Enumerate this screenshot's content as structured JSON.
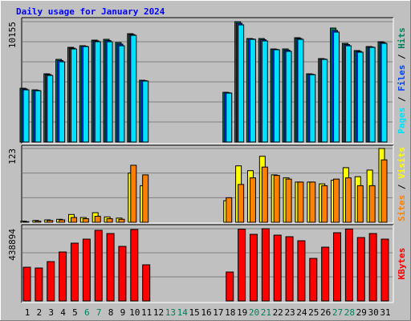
{
  "chart_data": [
    {
      "type": "bar",
      "title": "Daily usage for January 2024",
      "legend_separator": " / ",
      "ylim": [
        0,
        10155
      ],
      "yticks": [
        10155
      ],
      "grid": true,
      "series": [
        {
          "name": "Hits",
          "color": "#00805c",
          "values": [
            4536,
            4400,
            5755,
            6973,
            7989,
            8124,
            8598,
            8666,
            8395,
            9140,
            5213,
            0,
            0,
            0,
            0,
            0,
            0,
            4197,
            10155,
            8733,
            8733,
            7853,
            7853,
            8801,
            5755,
            7041,
            9614,
            8327,
            7718,
            8056,
            8463
          ]
        },
        {
          "name": "Files",
          "color": "#0040ff",
          "values": [
            4480,
            4370,
            5690,
            6870,
            7920,
            8090,
            8530,
            8560,
            8260,
            9070,
            5180,
            0,
            0,
            0,
            0,
            0,
            0,
            4160,
            10020,
            8700,
            8630,
            7820,
            7750,
            8730,
            5720,
            7010,
            9410,
            8220,
            7650,
            8020,
            8390
          ]
        },
        {
          "name": "Pages",
          "color": "#00e0ff",
          "values": [
            4400,
            4333,
            5619,
            6770,
            7853,
            8056,
            8463,
            8463,
            8124,
            9004,
            5145,
            0,
            0,
            0,
            0,
            0,
            0,
            4130,
            9885,
            8666,
            8530,
            7786,
            7650,
            8666,
            5687,
            6973,
            9275,
            8124,
            7582,
            7989,
            8327
          ]
        }
      ]
    },
    {
      "type": "bar",
      "ylim": [
        0,
        123
      ],
      "yticks": [
        123
      ],
      "grid": true,
      "series": [
        {
          "name": "Visits",
          "color": "#ffff00",
          "values": [
            2,
            3,
            4,
            5,
            13,
            8,
            16,
            9,
            7,
            82,
            61,
            0,
            0,
            0,
            0,
            0,
            0,
            36,
            94,
            86,
            110,
            79,
            74,
            67,
            67,
            64,
            70,
            91,
            76,
            87,
            123
          ]
        },
        {
          "name": "Sites",
          "color": "#ff8000",
          "values": [
            1,
            2,
            3,
            4,
            8,
            6,
            10,
            6,
            5,
            95,
            79,
            0,
            0,
            0,
            0,
            0,
            0,
            41,
            63,
            74,
            92,
            78,
            72,
            67,
            67,
            61,
            72,
            74,
            61,
            61,
            104
          ]
        }
      ]
    },
    {
      "type": "bar",
      "ylim": [
        0,
        438894
      ],
      "yticks": [
        438894
      ],
      "grid": true,
      "categories": [
        "1",
        "2",
        "3",
        "4",
        "5",
        "6",
        "7",
        "8",
        "9",
        "10",
        "11",
        "12",
        "13",
        "14",
        "15",
        "16",
        "17",
        "18",
        "19",
        "20",
        "21",
        "22",
        "23",
        "24",
        "25",
        "26",
        "27",
        "28",
        "29",
        "30",
        "31"
      ],
      "category_colors": [
        "#000000",
        "#000000",
        "#000000",
        "#000000",
        "#000000",
        "#00805c",
        "#00805c",
        "#000000",
        "#000000",
        "#000000",
        "#000000",
        "#000000",
        "#00805c",
        "#00805c",
        "#000000",
        "#000000",
        "#000000",
        "#000000",
        "#000000",
        "#00805c",
        "#00805c",
        "#000000",
        "#000000",
        "#000000",
        "#000000",
        "#000000",
        "#00805c",
        "#00805c",
        "#000000",
        "#000000",
        "#000000"
      ],
      "series": [
        {
          "name": "KBytes",
          "color": "#ff0000",
          "values": [
            204800,
            200000,
            239000,
            297500,
            351100,
            375500,
            429200,
            409700,
            331600,
            434100,
            219500,
            0,
            0,
            0,
            0,
            0,
            0,
            175600,
            436000,
            404800,
            438894,
            399900,
            390200,
            365800,
            258500,
            326800,
            414500,
            437000,
            385300,
            409700,
            375500
          ]
        }
      ]
    }
  ]
}
